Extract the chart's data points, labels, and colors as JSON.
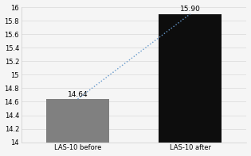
{
  "categories": [
    "LAS-10 before",
    "LAS-10 after"
  ],
  "values": [
    14.64,
    15.9
  ],
  "bar_colors": [
    "#808080",
    "#0d0d0d"
  ],
  "label_values": [
    "14.64",
    "15.90"
  ],
  "ylim": [
    14,
    16
  ],
  "yticks": [
    14,
    14.2,
    14.4,
    14.6,
    14.8,
    15,
    15.2,
    15.4,
    15.6,
    15.8,
    16
  ],
  "line_color": "#6699cc",
  "background_color": "#f5f5f5",
  "bar_width": 0.28,
  "x_positions": [
    0.25,
    0.75
  ],
  "xlim": [
    0,
    1
  ],
  "label_fontsize": 6.5,
  "tick_fontsize": 6,
  "grid_color": "#d9d9d9",
  "spine_color": "#cccccc"
}
